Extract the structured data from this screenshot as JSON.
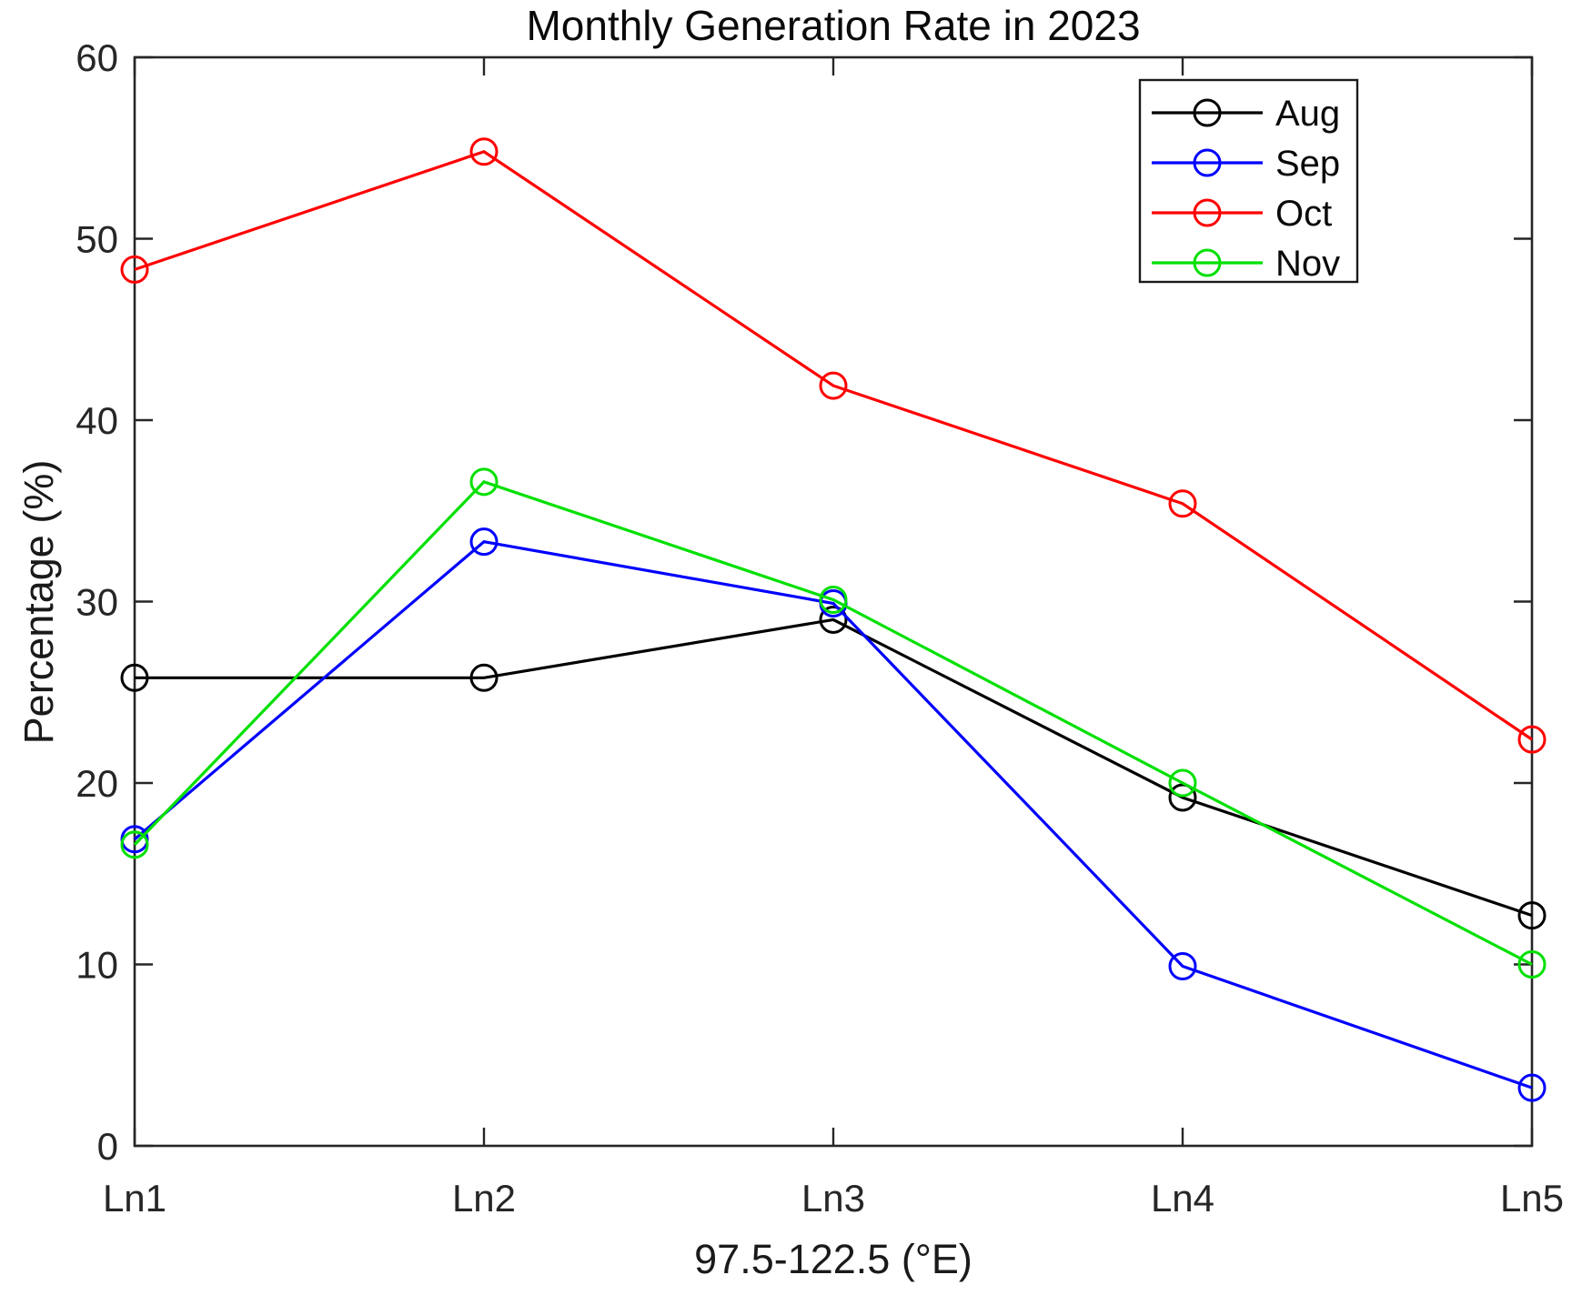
{
  "chart_data": {
    "type": "line",
    "title": "Monthly Generation Rate in 2023",
    "xlabel": "97.5-122.5 (°E)",
    "ylabel": "Percentage (%)",
    "categories": [
      "Ln1",
      "Ln2",
      "Ln3",
      "Ln4",
      "Ln5"
    ],
    "ylim": [
      0,
      60
    ],
    "yticks": [
      0,
      10,
      20,
      30,
      40,
      50,
      60
    ],
    "grid": false,
    "legend_position": "top-right",
    "marker": "open-circle",
    "series": [
      {
        "name": "Aug",
        "color": "#000000",
        "values": [
          25.8,
          25.8,
          29.0,
          19.2,
          12.7
        ]
      },
      {
        "name": "Sep",
        "color": "#0000FF",
        "values": [
          16.9,
          33.3,
          29.9,
          9.9,
          3.2
        ]
      },
      {
        "name": "Oct",
        "color": "#FF0000",
        "values": [
          48.3,
          54.8,
          41.9,
          35.4,
          22.4
        ]
      },
      {
        "name": "Nov",
        "color": "#00E000",
        "values": [
          16.6,
          36.6,
          30.1,
          20.0,
          10.0
        ]
      }
    ]
  },
  "colors": {
    "axis": "#262626",
    "background": "#FFFFFF"
  }
}
